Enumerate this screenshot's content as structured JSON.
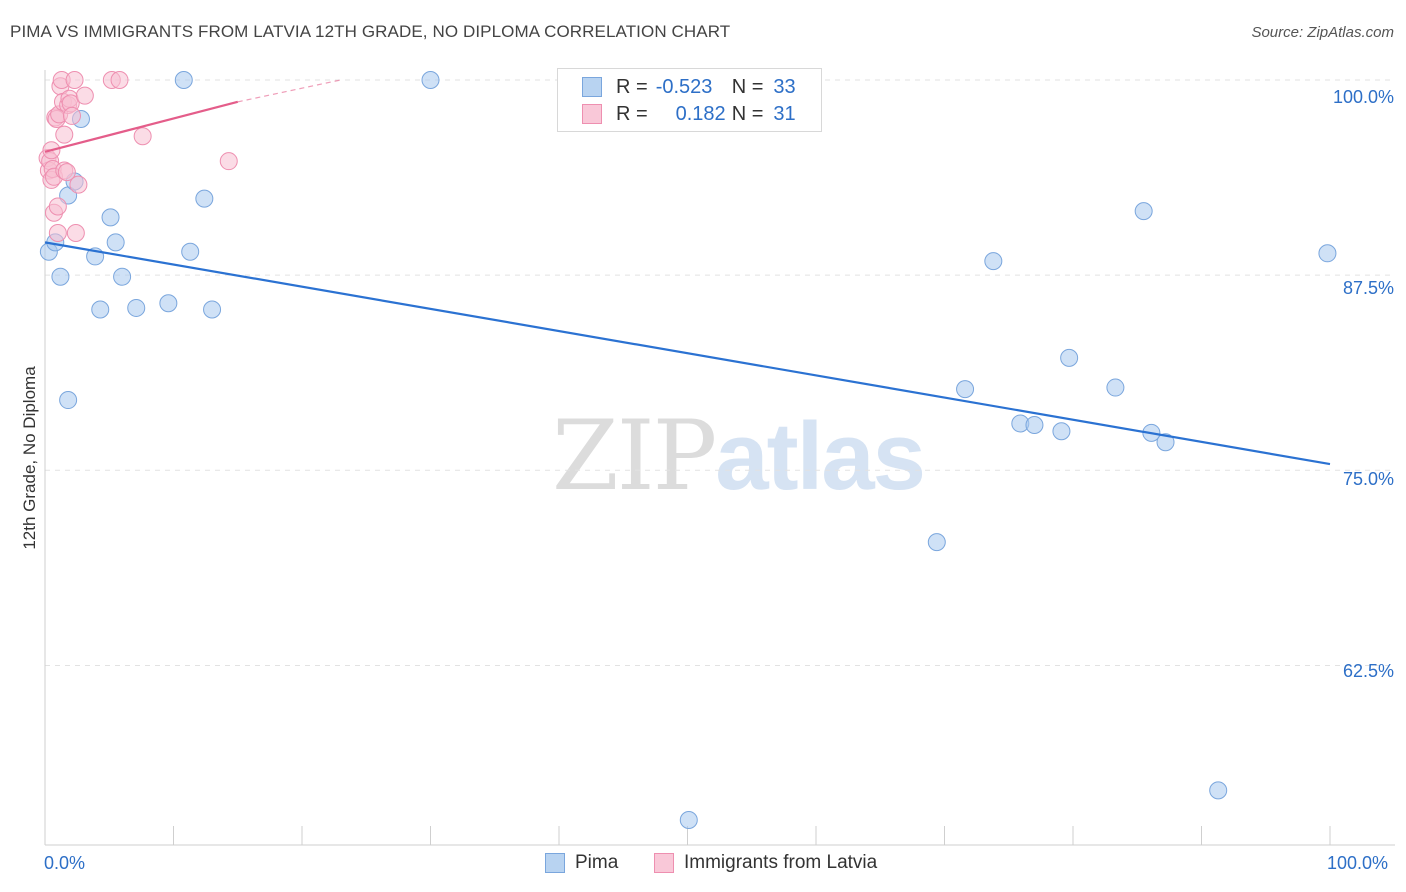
{
  "title": "PIMA VS IMMIGRANTS FROM LATVIA 12TH GRADE, NO DIPLOMA CORRELATION CHART",
  "source": "Source: ZipAtlas.com",
  "watermark": {
    "zip": "ZIP",
    "atlas": "atlas"
  },
  "legend": {
    "rows": [
      {
        "r_label": "R =",
        "r_value": "-0.523",
        "n_label": "N =",
        "n_value": "33",
        "color": "#a8c8ef",
        "border": "#7aa6dd"
      },
      {
        "r_label": "R =",
        "r_value": "0.182",
        "n_label": "N =",
        "n_value": "31",
        "color": "#f8bfd2",
        "border": "#ee8fb0"
      }
    ]
  },
  "bottom_legend": [
    {
      "label": "Pima",
      "color": "#b8d3f1",
      "border": "#7aa6dd"
    },
    {
      "label": "Immigrants from Latvia",
      "color": "#f9c8d8",
      "border": "#ee8fb0"
    }
  ],
  "chart_data": {
    "type": "scatter",
    "title": "PIMA VS IMMIGRANTS FROM LATVIA 12TH GRADE, NO DIPLOMA CORRELATION CHART",
    "xlabel": "",
    "ylabel": "12th Grade, No Diploma",
    "x_tick_labels": [
      "0.0%",
      "100.0%"
    ],
    "y_tick_labels": [
      "100.0%",
      "87.5%",
      "75.0%",
      "62.5%"
    ],
    "y_ticks": [
      100.0,
      87.5,
      75.0,
      62.5
    ],
    "xlim": [
      0,
      100
    ],
    "ylim": [
      51,
      100
    ],
    "grid": true,
    "series": [
      {
        "name": "Pima",
        "color": "#a8c8ef",
        "stroke": "#7aa6dd",
        "trend_color": "#2b72d2",
        "trend": {
          "x": [
            0,
            100
          ],
          "y": [
            89.6,
            75.4
          ]
        },
        "points": [
          {
            "x": 0.3,
            "y": 89.0
          },
          {
            "x": 0.8,
            "y": 89.6
          },
          {
            "x": 1.2,
            "y": 87.4
          },
          {
            "x": 1.8,
            "y": 79.5
          },
          {
            "x": 1.8,
            "y": 92.6
          },
          {
            "x": 2.3,
            "y": 93.5
          },
          {
            "x": 2.8,
            "y": 97.5
          },
          {
            "x": 3.9,
            "y": 88.7
          },
          {
            "x": 4.3,
            "y": 85.3
          },
          {
            "x": 5.1,
            "y": 91.2
          },
          {
            "x": 5.5,
            "y": 89.6
          },
          {
            "x": 6.0,
            "y": 87.4
          },
          {
            "x": 7.1,
            "y": 85.4
          },
          {
            "x": 9.6,
            "y": 85.7
          },
          {
            "x": 10.8,
            "y": 100.0
          },
          {
            "x": 11.3,
            "y": 89.0
          },
          {
            "x": 12.4,
            "y": 92.4
          },
          {
            "x": 13.0,
            "y": 85.3
          },
          {
            "x": 30.0,
            "y": 100.0
          },
          {
            "x": 50.1,
            "y": 52.6
          },
          {
            "x": 69.4,
            "y": 70.4
          },
          {
            "x": 71.6,
            "y": 80.2
          },
          {
            "x": 73.8,
            "y": 88.4
          },
          {
            "x": 75.9,
            "y": 78.0
          },
          {
            "x": 77.0,
            "y": 77.9
          },
          {
            "x": 79.1,
            "y": 77.5
          },
          {
            "x": 79.7,
            "y": 82.2
          },
          {
            "x": 83.3,
            "y": 80.3
          },
          {
            "x": 85.5,
            "y": 91.6
          },
          {
            "x": 86.1,
            "y": 77.4
          },
          {
            "x": 87.2,
            "y": 76.8
          },
          {
            "x": 91.3,
            "y": 54.5
          },
          {
            "x": 99.8,
            "y": 88.9
          }
        ]
      },
      {
        "name": "Immigrants from Latvia",
        "color": "#f8bfd2",
        "stroke": "#ee8fb0",
        "trend_color": "#e45d8a",
        "trend": {
          "x": [
            0,
            15
          ],
          "y": [
            95.4,
            98.6
          ]
        },
        "trend_dashed": {
          "x": [
            15,
            23
          ],
          "y": [
            98.6,
            100.0
          ]
        },
        "points": [
          {
            "x": 0.2,
            "y": 95.0
          },
          {
            "x": 0.3,
            "y": 94.2
          },
          {
            "x": 0.4,
            "y": 94.8
          },
          {
            "x": 0.5,
            "y": 95.5
          },
          {
            "x": 0.5,
            "y": 93.6
          },
          {
            "x": 0.6,
            "y": 94.3
          },
          {
            "x": 0.7,
            "y": 91.5
          },
          {
            "x": 0.7,
            "y": 93.8
          },
          {
            "x": 0.8,
            "y": 97.6
          },
          {
            "x": 0.9,
            "y": 97.5
          },
          {
            "x": 1.0,
            "y": 91.9
          },
          {
            "x": 1.0,
            "y": 90.2
          },
          {
            "x": 1.1,
            "y": 97.8
          },
          {
            "x": 1.2,
            "y": 99.6
          },
          {
            "x": 1.3,
            "y": 100.0
          },
          {
            "x": 1.4,
            "y": 98.6
          },
          {
            "x": 1.5,
            "y": 94.2
          },
          {
            "x": 1.5,
            "y": 96.5
          },
          {
            "x": 1.7,
            "y": 94.1
          },
          {
            "x": 1.8,
            "y": 98.4
          },
          {
            "x": 1.9,
            "y": 98.8
          },
          {
            "x": 2.0,
            "y": 98.5
          },
          {
            "x": 2.1,
            "y": 97.7
          },
          {
            "x": 2.3,
            "y": 100.0
          },
          {
            "x": 2.4,
            "y": 90.2
          },
          {
            "x": 2.6,
            "y": 93.3
          },
          {
            "x": 3.1,
            "y": 99.0
          },
          {
            "x": 5.2,
            "y": 100.0
          },
          {
            "x": 5.8,
            "y": 100.0
          },
          {
            "x": 7.6,
            "y": 96.4
          },
          {
            "x": 14.3,
            "y": 94.8
          }
        ]
      }
    ]
  }
}
